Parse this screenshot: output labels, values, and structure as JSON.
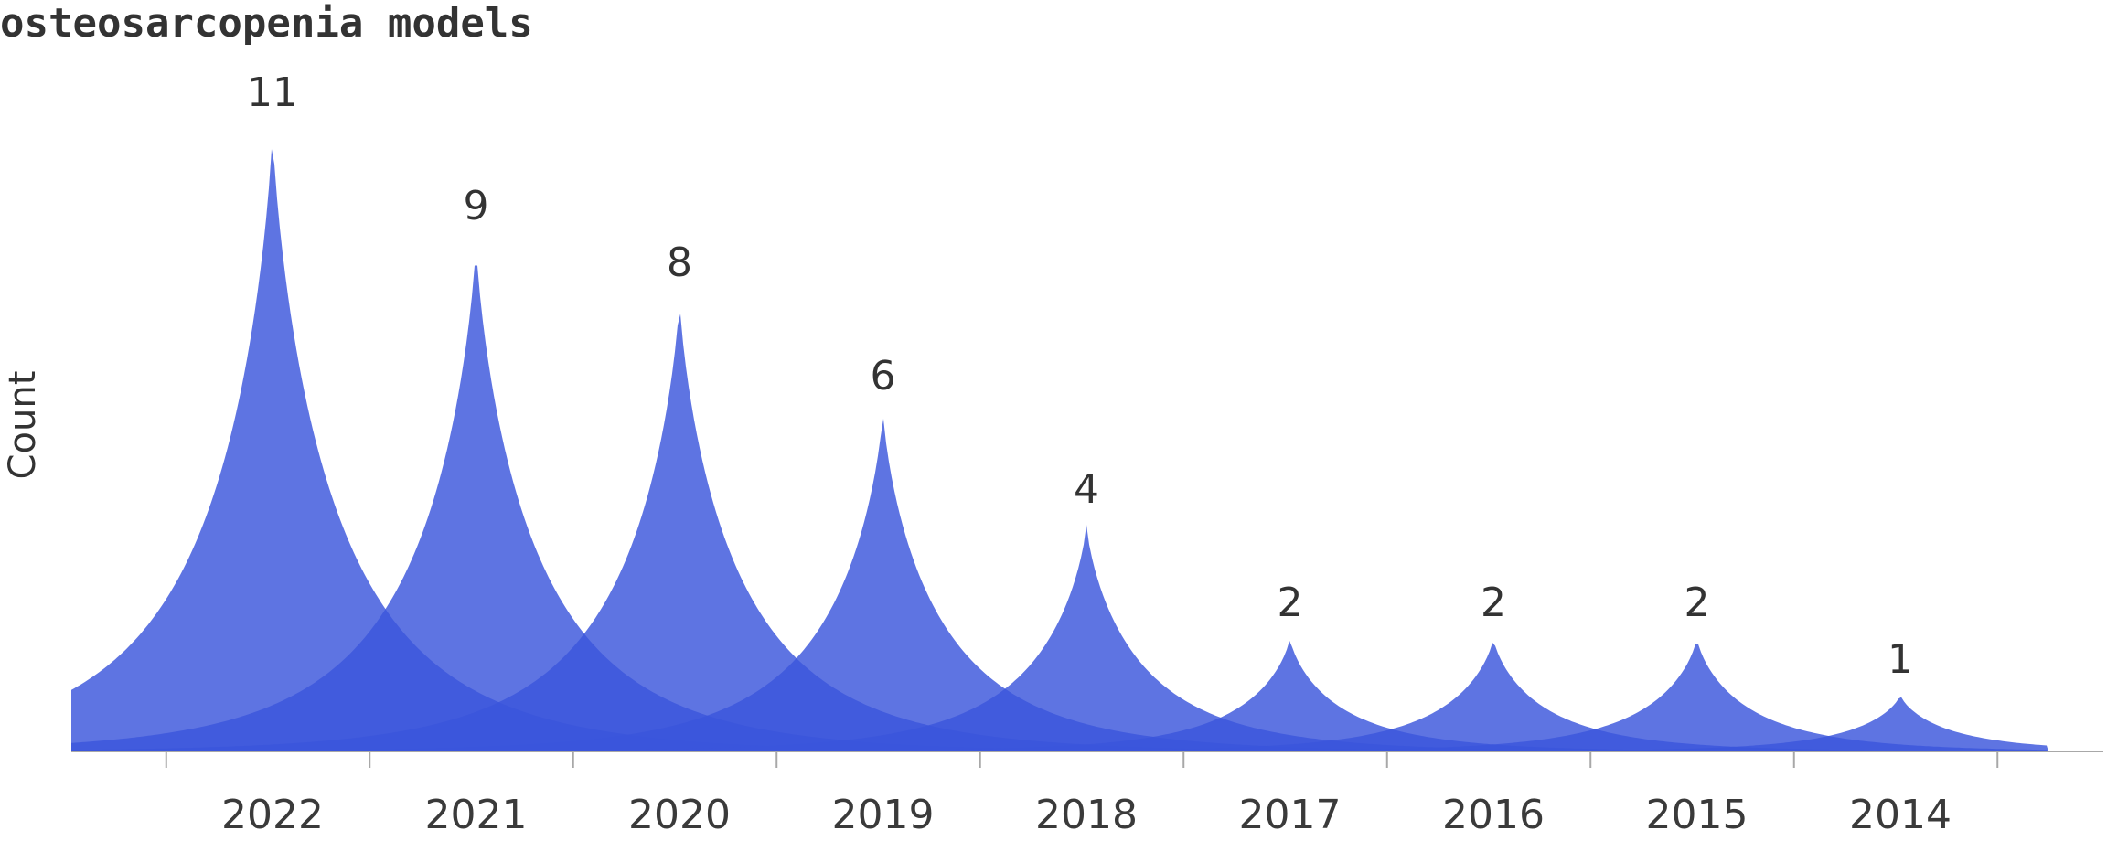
{
  "chart_data": {
    "type": "area",
    "title": "osteosarcopenia models",
    "xlabel": "",
    "ylabel": "Count",
    "categories": [
      "2022",
      "2021",
      "2020",
      "2019",
      "2018",
      "2017",
      "2016",
      "2015",
      "2014"
    ],
    "values": [
      11,
      9,
      8,
      6,
      4,
      2,
      2,
      2,
      1
    ],
    "value_labels": [
      "11",
      "9",
      "8",
      "6",
      "4",
      "2",
      "2",
      "2",
      "1"
    ],
    "ylim": [
      0,
      11
    ],
    "grid": false,
    "legend": "none",
    "colors": {
      "fill": "#3a55dc",
      "text": "#333333",
      "axis": "#999999"
    }
  }
}
